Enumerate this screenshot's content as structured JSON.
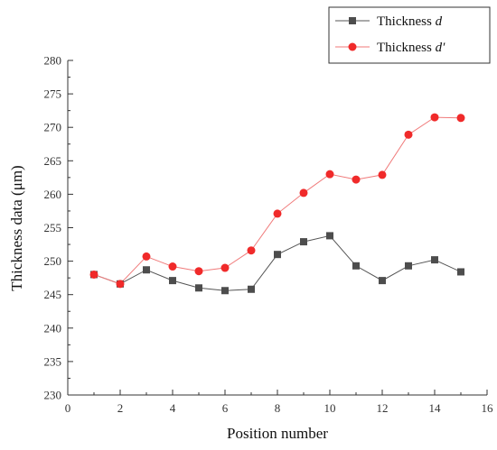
{
  "chart_data": {
    "type": "line",
    "xlabel": "Position number",
    "ylabel": "Thickness data (μm)",
    "xlim": [
      0,
      16
    ],
    "ylim": [
      230,
      280
    ],
    "x_ticks": [
      "0",
      "2",
      "4",
      "6",
      "8",
      "10",
      "12",
      "14",
      "16"
    ],
    "y_ticks": [
      "230",
      "235",
      "240",
      "245",
      "250",
      "255",
      "260",
      "265",
      "270",
      "275",
      "280"
    ],
    "x": [
      1,
      2,
      3,
      4,
      5,
      6,
      7,
      8,
      9,
      10,
      11,
      12,
      13,
      14,
      15
    ],
    "legend_position": "top-right",
    "grid": false,
    "series": [
      {
        "name": "Thickness d",
        "name_base": "Thickness ",
        "name_var": "d",
        "color": "#4d4d4d",
        "line_color": "#555555",
        "marker": "square",
        "values": [
          248.0,
          246.6,
          248.7,
          247.1,
          246.0,
          245.6,
          245.8,
          251.0,
          252.9,
          253.8,
          249.3,
          247.1,
          249.3,
          250.2,
          248.4
        ]
      },
      {
        "name": "Thickness d′",
        "name_base": "Thickness ",
        "name_var": "d′",
        "color": "#f02a2a",
        "line_color": "#f07a7a",
        "marker": "circle",
        "values": [
          248.0,
          246.6,
          250.7,
          249.2,
          248.5,
          249.0,
          251.6,
          257.1,
          260.2,
          263.0,
          262.2,
          262.9,
          268.9,
          271.5,
          271.4
        ]
      }
    ]
  }
}
